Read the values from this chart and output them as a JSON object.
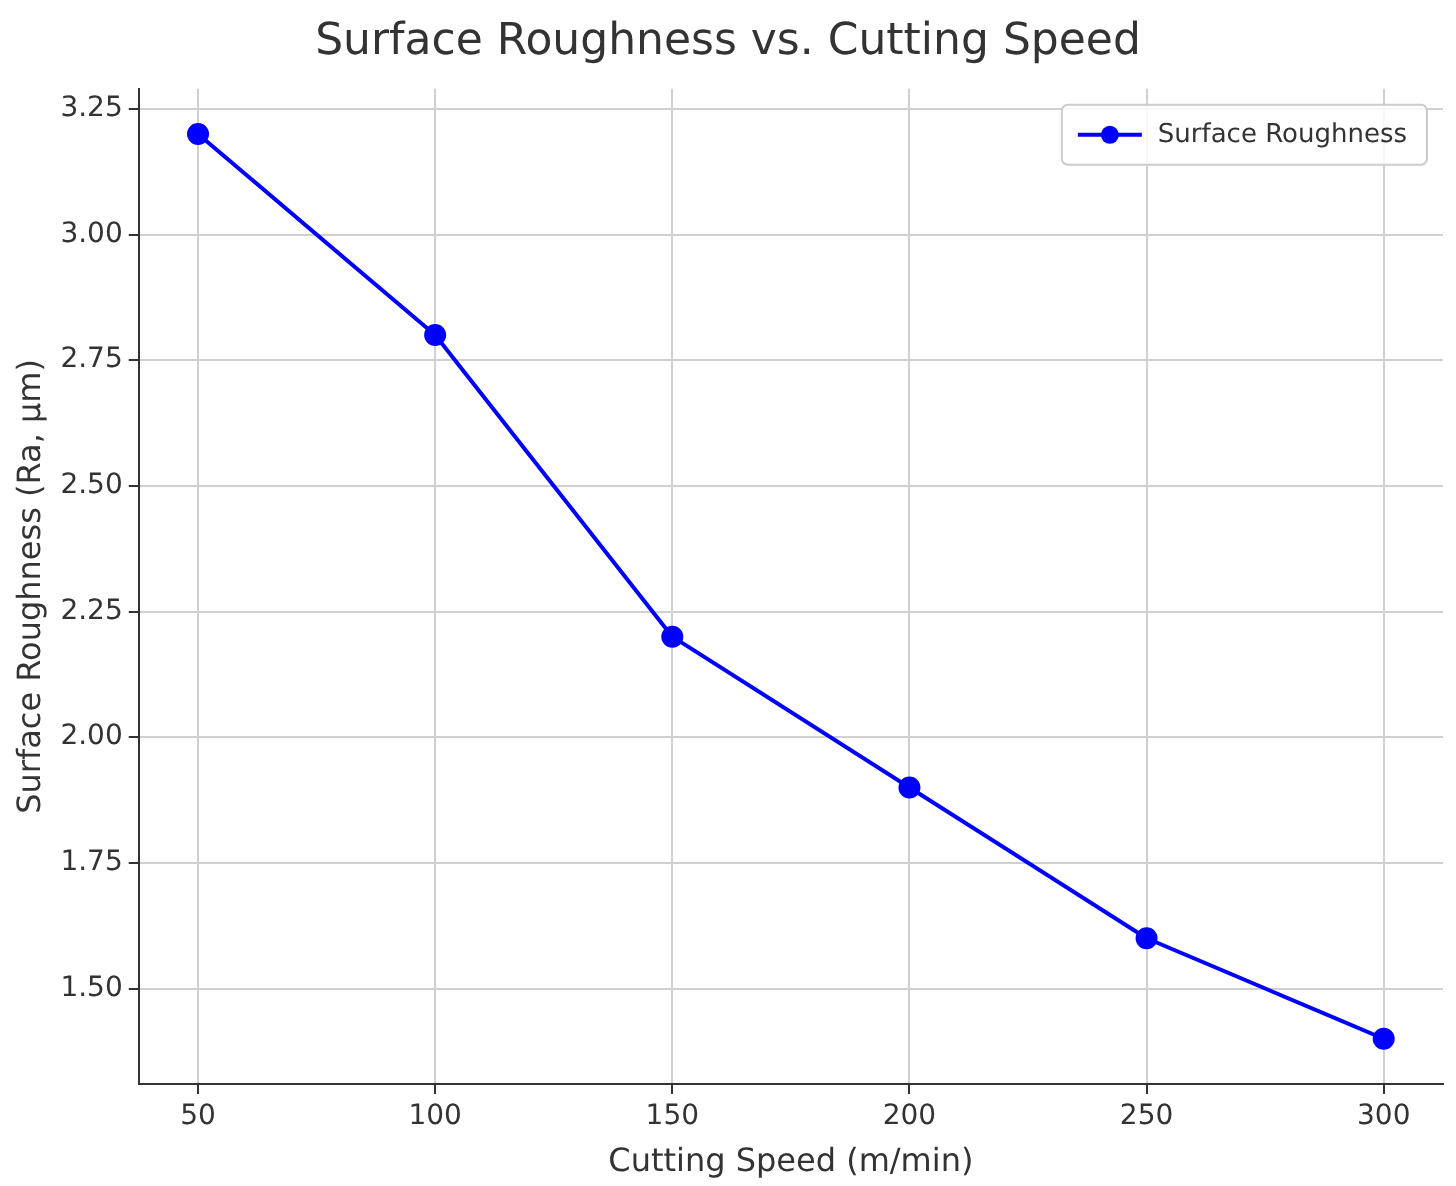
{
  "chart_data": {
    "type": "line",
    "title": "Surface Roughness vs. Cutting Speed",
    "xlabel": "Cutting Speed (m/min)",
    "ylabel": "Surface Roughness (Ra, µm)",
    "x": [
      50,
      100,
      150,
      200,
      250,
      300
    ],
    "series": [
      {
        "name": "Surface Roughness",
        "color": "#0000ff",
        "values": [
          3.2,
          2.8,
          2.2,
          1.9,
          1.6,
          1.4
        ]
      }
    ],
    "xlim": [
      37.5,
      312.5
    ],
    "xticks": [
      50,
      100,
      150,
      200,
      250,
      300
    ],
    "ylim": [
      1.31,
      3.29
    ],
    "yticks": [
      {
        "value": 1.5,
        "label": "1.50"
      },
      {
        "value": 1.75,
        "label": "1.75"
      },
      {
        "value": 2,
        "label": "2.00"
      },
      {
        "value": 2.25,
        "label": "2.25"
      },
      {
        "value": 2.5,
        "label": "2.50"
      },
      {
        "value": 2.75,
        "label": "2.75"
      },
      {
        "value": 3,
        "label": "3.00"
      },
      {
        "value": 3.25,
        "label": "3.25"
      }
    ],
    "grid": true,
    "legend": "top right",
    "marker": "circle",
    "line_style": "solid"
  }
}
